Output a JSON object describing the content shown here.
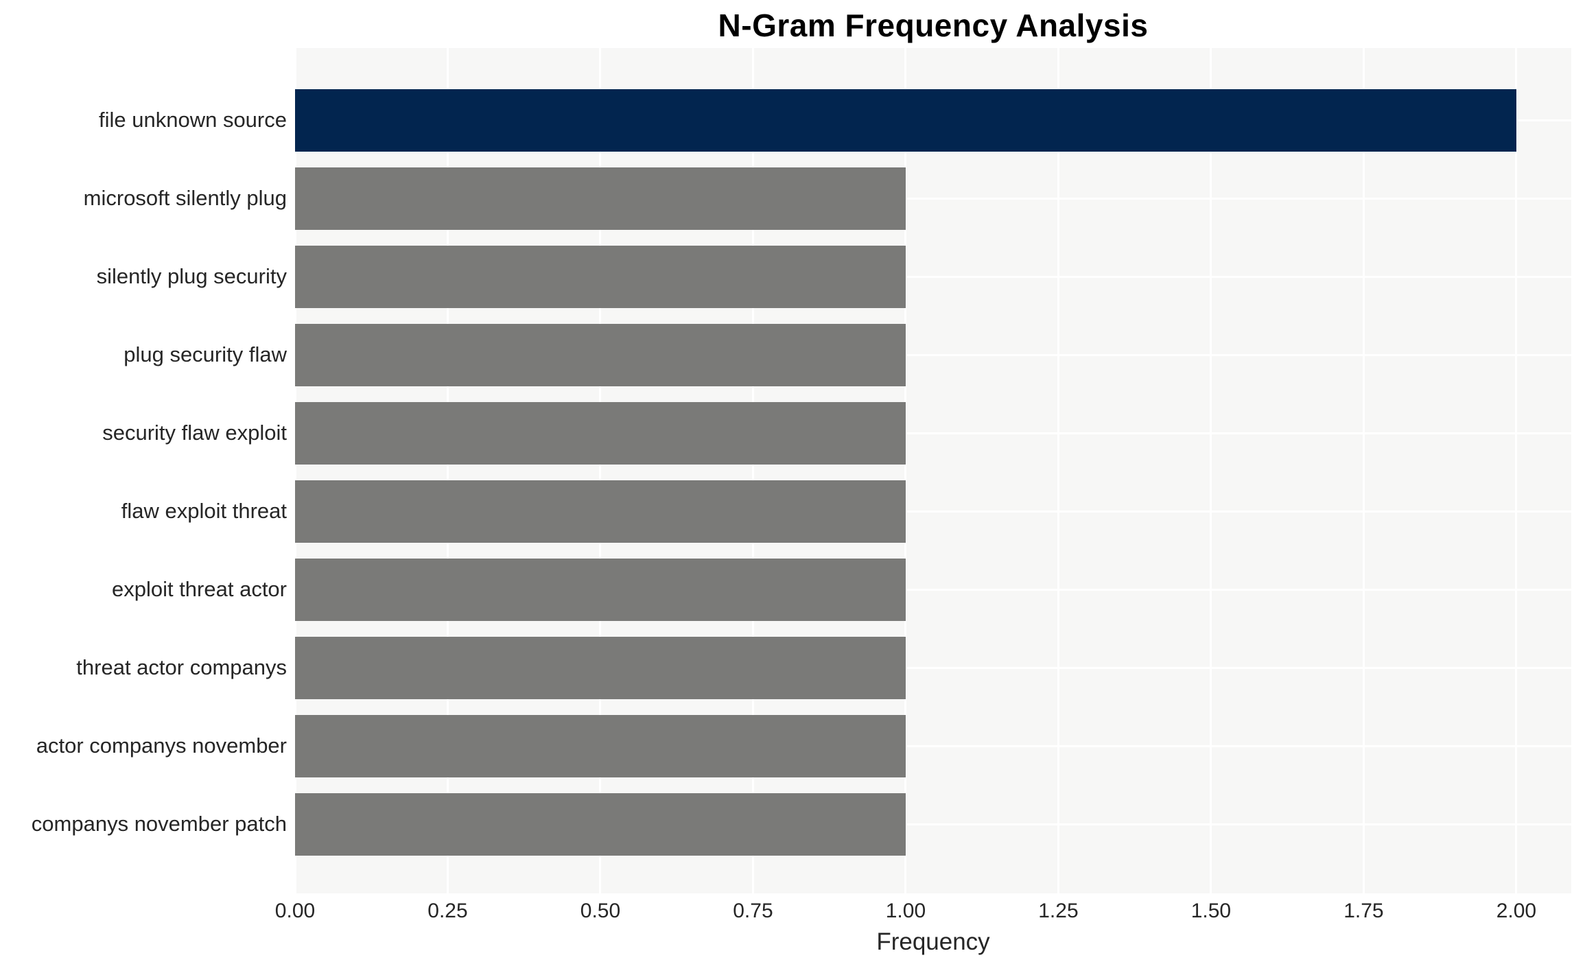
{
  "chart_data": {
    "type": "bar",
    "orientation": "horizontal",
    "title": "N-Gram Frequency Analysis",
    "xlabel": "Frequency",
    "ylabel": "",
    "categories": [
      "file unknown source",
      "microsoft silently plug",
      "silently plug security",
      "plug security flaw",
      "security flaw exploit",
      "flaw exploit threat",
      "exploit threat actor",
      "threat actor companys",
      "actor companys november",
      "companys november patch"
    ],
    "values": [
      2,
      1,
      1,
      1,
      1,
      1,
      1,
      1,
      1,
      1
    ],
    "xlim": [
      0,
      2.09
    ],
    "xticks": [
      0,
      0.25,
      0.5,
      0.75,
      1,
      1.25,
      1.5,
      1.75,
      2
    ],
    "xtick_labels": [
      "0.00",
      "0.25",
      "0.50",
      "0.75",
      "1.00",
      "1.25",
      "1.50",
      "1.75",
      "2.00"
    ],
    "grid": "white major gridlines on light panel, no axis spines",
    "legend": "none",
    "colors": {
      "highlight_bar": "#02254f",
      "default_bar": "#7a7a78",
      "panel_background": "#f7f7f6",
      "figure_background": "#ffffff",
      "gridline": "#ffffff",
      "title_text": "#000000",
      "label_text": "#262626"
    }
  }
}
